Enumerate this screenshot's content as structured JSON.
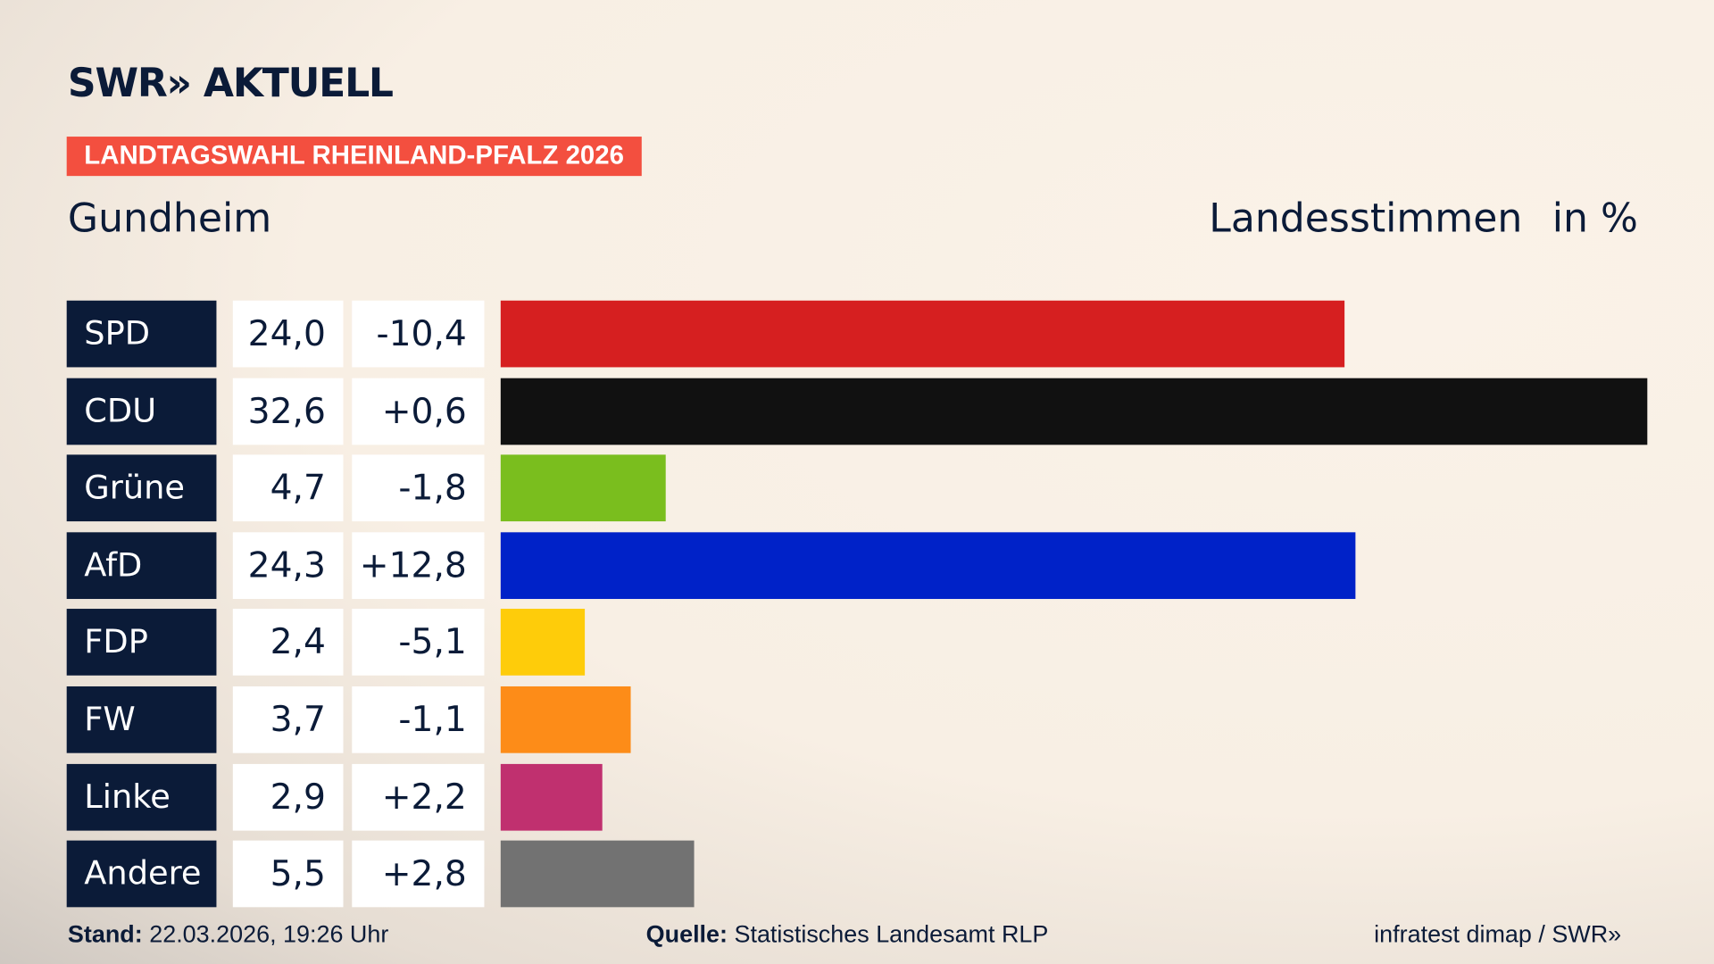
{
  "header": {
    "logo": "SWR» AKTUELL",
    "badge": "LANDTAGSWAHL RHEINLAND-PFALZ 2026",
    "place": "Gundheim",
    "measure": "Landesstimmen",
    "unit": "in %"
  },
  "chart_data": {
    "type": "bar",
    "orientation": "horizontal",
    "categories": [
      "SPD",
      "CDU",
      "Grüne",
      "AfD",
      "FDP",
      "FW",
      "Linke",
      "Andere"
    ],
    "values": [
      24.0,
      32.6,
      4.7,
      24.3,
      2.4,
      3.7,
      2.9,
      5.5
    ],
    "value_labels": [
      "24,0",
      "32,6",
      "4,7",
      "24,3",
      "2,4",
      "3,7",
      "2,9",
      "5,5"
    ],
    "change_labels": [
      "-10,4",
      "+0,6",
      "-1,8",
      "+12,8",
      "-5,1",
      "-1,1",
      "+2,2",
      "+2,8"
    ],
    "changes": [
      -10.4,
      0.6,
      -1.8,
      12.8,
      -5.1,
      -1.1,
      2.2,
      2.8
    ],
    "colors": [
      "#d61f20",
      "#111111",
      "#7abe1e",
      "#0022c8",
      "#fecc0a",
      "#fd8c18",
      "#c0306f",
      "#727272"
    ],
    "xlim": [
      0,
      32.6
    ]
  },
  "footer": {
    "stand_label": "Stand:",
    "stand": "22.03.2026, 19:26 Uhr",
    "source_label": "Quelle:",
    "source": "Statistisches Landesamt RLP",
    "credit": "infratest dimap / SWR»"
  }
}
